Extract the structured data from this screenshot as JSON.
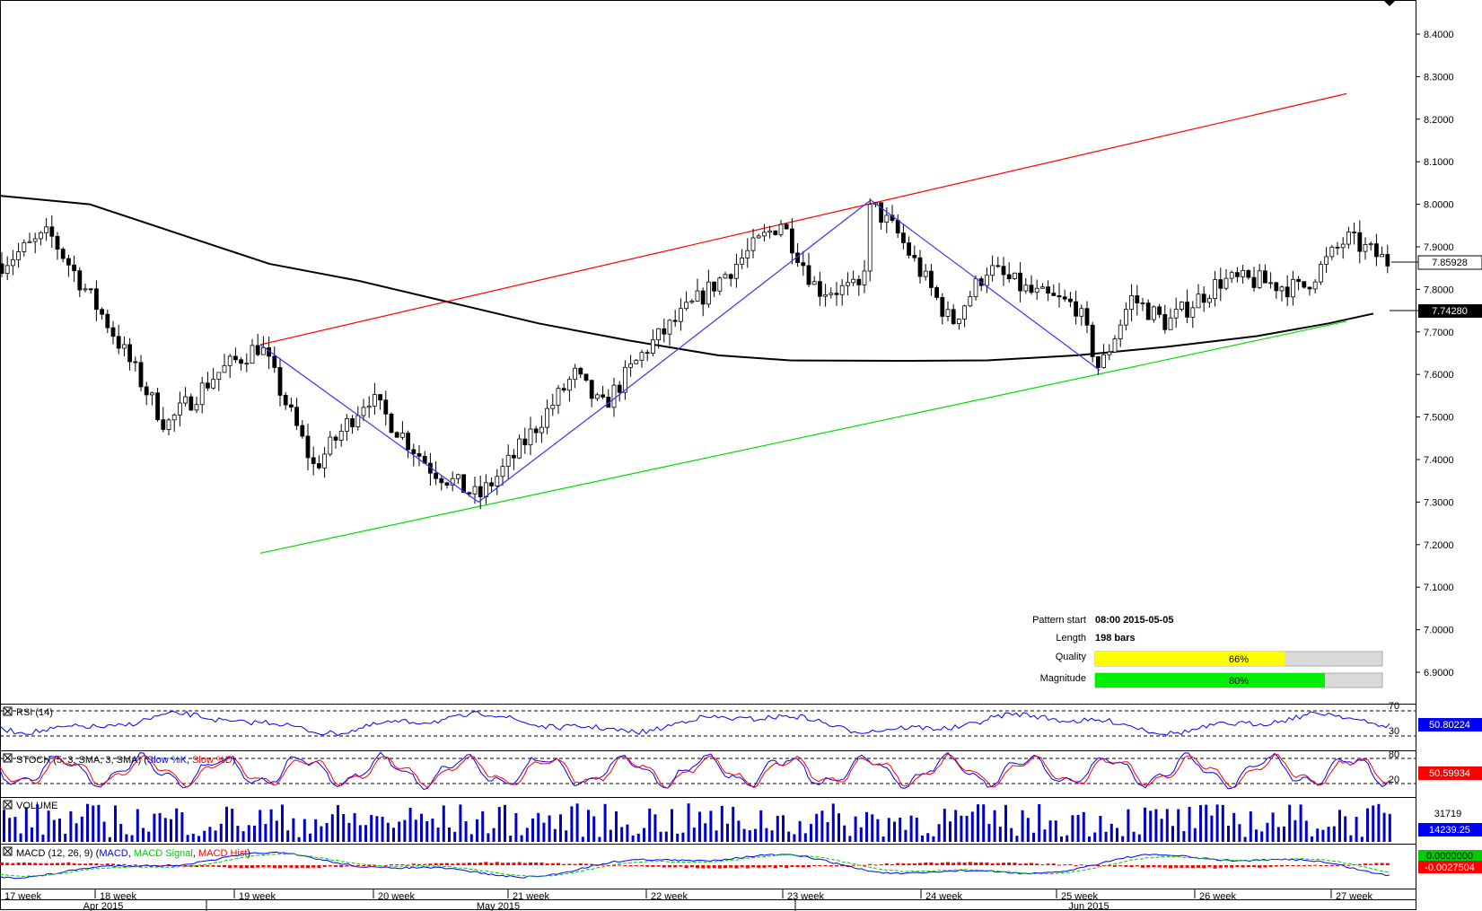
{
  "chart_data": {
    "type": "candlestick",
    "grid": false,
    "price_axis": {
      "ticks": [
        "8.4000",
        "8.3000",
        "8.2000",
        "8.1000",
        "8.0000",
        "7.9000",
        "7.8000",
        "7.7000",
        "7.6000",
        "7.5000",
        "7.4000",
        "7.3000",
        "7.2000",
        "7.1000",
        "7.0000",
        "6.9000"
      ],
      "ylim": [
        6.85,
        8.48
      ],
      "current_price": "7.85928",
      "ma_value": "7.74280"
    },
    "ohlc_window": {
      "first_close": 7.86,
      "last_close": 7.859,
      "min": 7.29,
      "max": 8.01,
      "bars": 198
    },
    "zigzag": [
      {
        "x": 290,
        "y": 7.67
      },
      {
        "x": 533,
        "y": 7.3
      },
      {
        "x": 670,
        "y": 7.52
      },
      {
        "x": 970,
        "y": 8.01
      },
      {
        "x": 1225,
        "y": 7.61
      }
    ],
    "resistance_line": {
      "x0": 290,
      "y0": 7.67,
      "x1": 1500,
      "y1": 8.26,
      "color": "#ff0000"
    },
    "support_line": {
      "x0": 290,
      "y0": 7.18,
      "x1": 1500,
      "y1": 7.725,
      "color": "#00dd00"
    },
    "moving_average_color": "#000000",
    "pattern_info": {
      "start_label": "Pattern start",
      "start_value": "08:00 2015-05-05",
      "length_label": "Length",
      "length_value": "198 bars",
      "quality_label": "Quality",
      "quality_value": "66%",
      "quality_fraction": 0.66,
      "quality_color": "#ffff00",
      "magnitude_label": "Magnitude",
      "magnitude_value": "80%",
      "magnitude_fraction": 0.8,
      "magnitude_color": "#00ee00"
    },
    "indicators": {
      "rsi": {
        "title": "RSI (14)",
        "level_high": "70",
        "level_low": "30",
        "value": "50.80224",
        "color": "#0000ff"
      },
      "stoch": {
        "title": "STOCH (5, 3, SMA, 3, SMA)",
        "title_slow_k": "Slow %K",
        "title_slow_d": "Slow %D",
        "level_high": "80",
        "level_low": "20",
        "value": "50.59934"
      },
      "volume": {
        "title": "VOLUME",
        "level": "31719",
        "value": "14239.25"
      },
      "macd": {
        "title": "MACD (12, 26, 9)",
        "label_macd": "MACD",
        "label_signal": "MACD Signal",
        "label_hist": "MACD Hist",
        "value1": "0.0000000",
        "value2": "-0.0027504"
      }
    },
    "x_axis": {
      "weeks": [
        "17 week",
        "18 week",
        "19 week",
        "20 week",
        "21 week",
        "22 week",
        "23 week",
        "24 week",
        "25 week",
        "26 week",
        "27 week"
      ],
      "months": [
        "Apr 2015",
        "May 2015",
        "Jun 2015"
      ]
    }
  }
}
